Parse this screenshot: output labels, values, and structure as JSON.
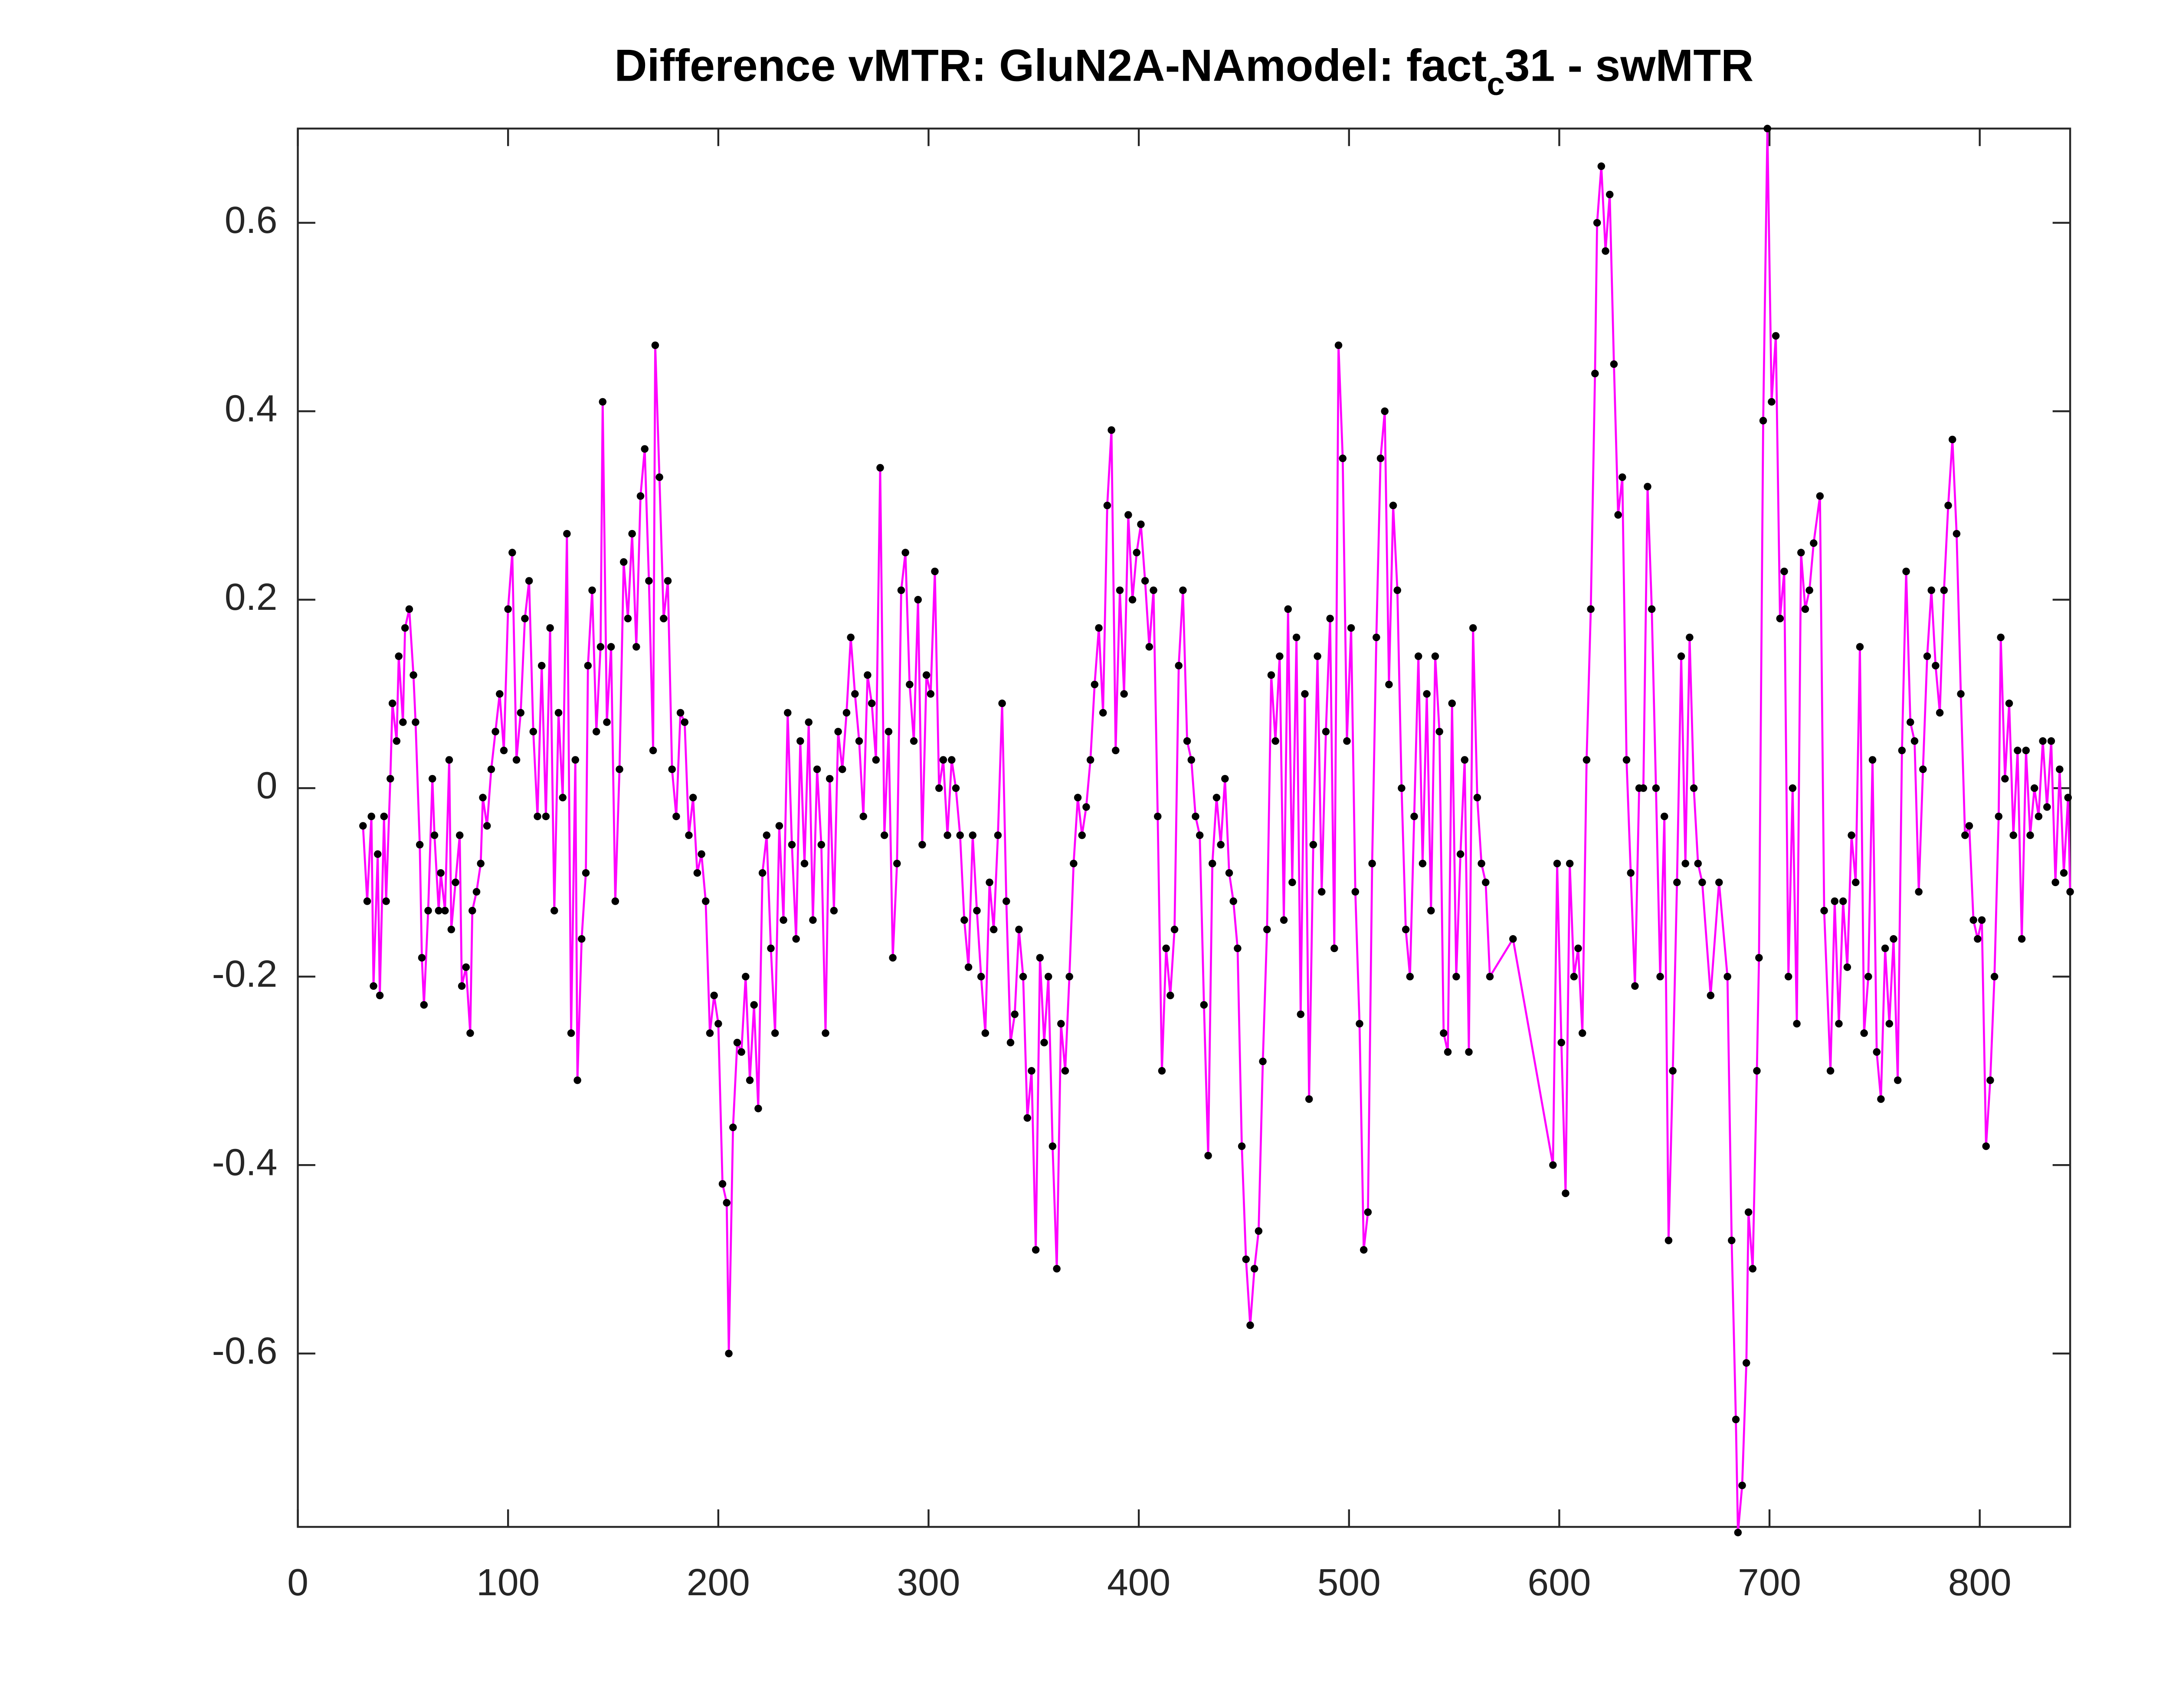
{
  "chart_data": {
    "type": "line",
    "title": [
      "Difference vMTR: GluN2A-NAmodel: fact",
      "c",
      "31 - swMTR"
    ],
    "line_color": "#ff00ff",
    "marker_color": "#000000",
    "xlim": [
      0,
      843
    ],
    "ylim": [
      -0.784,
      0.7
    ],
    "xticks": [
      0,
      100,
      200,
      300,
      400,
      500,
      600,
      700,
      800
    ],
    "yticks": [
      -0.6,
      -0.4,
      -0.2,
      0,
      0.2,
      0.4,
      0.6
    ],
    "x": [
      31,
      33,
      35,
      36,
      38,
      39,
      41,
      42,
      44,
      45,
      47,
      48,
      50,
      51,
      53,
      55,
      56,
      58,
      59,
      60,
      62,
      64,
      65,
      67,
      68,
      70,
      72,
      73,
      75,
      77,
      78,
      80,
      82,
      83,
      85,
      87,
      88,
      90,
      92,
      94,
      96,
      98,
      100,
      102,
      104,
      106,
      108,
      110,
      112,
      114,
      116,
      118,
      120,
      122,
      124,
      126,
      128,
      130,
      132,
      133,
      135,
      137,
      138,
      140,
      142,
      144,
      145,
      147,
      149,
      151,
      153,
      155,
      157,
      159,
      161,
      163,
      165,
      167,
      169,
      170,
      172,
      174,
      176,
      178,
      180,
      182,
      184,
      186,
      188,
      190,
      192,
      194,
      196,
      198,
      200,
      202,
      204,
      205,
      207,
      209,
      211,
      213,
      215,
      217,
      219,
      221,
      223,
      225,
      227,
      229,
      231,
      233,
      235,
      237,
      239,
      241,
      243,
      245,
      247,
      249,
      251,
      253,
      255,
      257,
      259,
      261,
      263,
      265,
      267,
      269,
      271,
      273,
      275,
      277,
      279,
      281,
      283,
      285,
      287,
      289,
      291,
      293,
      295,
      297,
      299,
      301,
      303,
      305,
      307,
      309,
      311,
      313,
      315,
      317,
      319,
      321,
      323,
      325,
      327,
      329,
      331,
      333,
      335,
      337,
      339,
      341,
      343,
      345,
      347,
      349,
      351,
      353,
      355,
      357,
      359,
      361,
      363,
      365,
      367,
      369,
      371,
      373,
      375,
      377,
      379,
      381,
      383,
      385,
      387,
      389,
      391,
      393,
      395,
      397,
      399,
      401,
      403,
      405,
      407,
      409,
      411,
      413,
      415,
      417,
      419,
      421,
      423,
      425,
      427,
      429,
      431,
      433,
      435,
      437,
      439,
      441,
      443,
      445,
      447,
      449,
      451,
      453,
      455,
      457,
      459,
      461,
      463,
      465,
      467,
      469,
      471,
      473,
      475,
      477,
      479,
      481,
      483,
      485,
      487,
      489,
      491,
      493,
      495,
      497,
      499,
      501,
      503,
      505,
      507,
      509,
      511,
      513,
      515,
      517,
      519,
      521,
      523,
      525,
      527,
      529,
      531,
      533,
      535,
      537,
      539,
      541,
      543,
      545,
      547,
      549,
      551,
      553,
      555,
      557,
      559,
      561,
      563,
      565,
      567,
      578,
      597,
      599,
      601,
      603,
      605,
      607,
      609,
      611,
      613,
      615,
      617,
      618,
      620,
      622,
      624,
      626,
      628,
      630,
      632,
      634,
      636,
      638,
      640,
      642,
      644,
      646,
      648,
      650,
      652,
      654,
      656,
      658,
      660,
      662,
      664,
      666,
      668,
      672,
      676,
      680,
      682,
      684,
      685,
      687,
      689,
      690,
      692,
      694,
      695,
      697,
      699,
      701,
      703,
      705,
      707,
      709,
      711,
      713,
      715,
      717,
      719,
      721,
      724,
      726,
      729,
      731,
      733,
      735,
      737,
      739,
      741,
      743,
      745,
      747,
      749,
      751,
      753,
      755,
      757,
      759,
      761,
      763,
      765,
      767,
      769,
      771,
      773,
      775,
      777,
      779,
      781,
      783,
      785,
      787,
      789,
      791,
      793,
      795,
      797,
      799,
      801,
      803,
      805,
      807,
      809,
      810,
      812,
      814,
      816,
      818,
      820,
      822,
      824,
      826,
      828,
      830,
      832,
      834,
      836,
      838,
      840,
      842,
      843
    ],
    "values": [
      -0.04,
      -0.12,
      -0.03,
      -0.21,
      -0.07,
      -0.22,
      -0.03,
      -0.12,
      0.01,
      0.09,
      0.05,
      0.14,
      0.07,
      0.17,
      0.19,
      0.12,
      0.07,
      -0.06,
      -0.18,
      -0.23,
      -0.13,
      0.01,
      -0.05,
      -0.13,
      -0.09,
      -0.13,
      0.03,
      -0.15,
      -0.1,
      -0.05,
      -0.21,
      -0.19,
      -0.26,
      -0.13,
      -0.11,
      -0.08,
      -0.01,
      -0.04,
      0.02,
      0.06,
      0.1,
      0.04,
      0.19,
      0.25,
      0.03,
      0.08,
      0.18,
      0.22,
      0.06,
      -0.03,
      0.13,
      -0.03,
      0.17,
      -0.13,
      0.08,
      -0.01,
      0.27,
      -0.26,
      0.03,
      -0.31,
      -0.16,
      -0.09,
      0.13,
      0.21,
      0.06,
      0.15,
      0.41,
      0.07,
      0.15,
      -0.12,
      0.02,
      0.24,
      0.18,
      0.27,
      0.15,
      0.31,
      0.36,
      0.22,
      0.04,
      0.47,
      0.33,
      0.18,
      0.22,
      0.02,
      -0.03,
      0.08,
      0.07,
      -0.05,
      -0.01,
      -0.09,
      -0.07,
      -0.12,
      -0.26,
      -0.22,
      -0.25,
      -0.42,
      -0.44,
      -0.6,
      -0.36,
      -0.27,
      -0.28,
      -0.2,
      -0.31,
      -0.23,
      -0.34,
      -0.09,
      -0.05,
      -0.17,
      -0.26,
      -0.04,
      -0.14,
      0.08,
      -0.06,
      -0.16,
      0.05,
      -0.08,
      0.07,
      -0.14,
      0.02,
      -0.06,
      -0.26,
      0.01,
      -0.13,
      0.06,
      0.02,
      0.08,
      0.16,
      0.1,
      0.05,
      -0.03,
      0.12,
      0.09,
      0.03,
      0.34,
      -0.05,
      0.06,
      -0.18,
      -0.08,
      0.21,
      0.25,
      0.11,
      0.05,
      0.2,
      -0.06,
      0.12,
      0.1,
      0.23,
      0.0,
      0.03,
      -0.05,
      0.03,
      0.0,
      -0.05,
      -0.14,
      -0.19,
      -0.05,
      -0.13,
      -0.2,
      -0.26,
      -0.1,
      -0.15,
      -0.05,
      0.09,
      -0.12,
      -0.27,
      -0.24,
      -0.15,
      -0.2,
      -0.35,
      -0.3,
      -0.49,
      -0.18,
      -0.27,
      -0.2,
      -0.38,
      -0.51,
      -0.25,
      -0.3,
      -0.2,
      -0.08,
      -0.01,
      -0.05,
      -0.02,
      0.03,
      0.11,
      0.17,
      0.08,
      0.3,
      0.38,
      0.04,
      0.21,
      0.1,
      0.29,
      0.2,
      0.25,
      0.28,
      0.22,
      0.15,
      0.21,
      -0.03,
      -0.3,
      -0.17,
      -0.22,
      -0.15,
      0.13,
      0.21,
      0.05,
      0.03,
      -0.03,
      -0.05,
      -0.23,
      -0.39,
      -0.08,
      -0.01,
      -0.06,
      0.01,
      -0.09,
      -0.12,
      -0.17,
      -0.38,
      -0.5,
      -0.57,
      -0.51,
      -0.47,
      -0.29,
      -0.15,
      0.12,
      0.05,
      0.14,
      -0.14,
      0.19,
      -0.1,
      0.16,
      -0.24,
      0.1,
      -0.33,
      -0.06,
      0.14,
      -0.11,
      0.06,
      0.18,
      -0.17,
      0.47,
      0.35,
      0.05,
      0.17,
      -0.11,
      -0.25,
      -0.49,
      -0.45,
      -0.08,
      0.16,
      0.35,
      0.4,
      0.11,
      0.3,
      0.21,
      0.0,
      -0.15,
      -0.2,
      -0.03,
      0.14,
      -0.08,
      0.1,
      -0.13,
      0.14,
      0.06,
      -0.26,
      -0.28,
      0.09,
      -0.2,
      -0.07,
      0.03,
      -0.28,
      0.17,
      -0.01,
      -0.08,
      -0.1,
      -0.2,
      -0.16,
      -0.4,
      -0.08,
      -0.27,
      -0.43,
      -0.08,
      -0.2,
      -0.17,
      -0.26,
      0.03,
      0.19,
      0.44,
      0.6,
      0.66,
      0.57,
      0.63,
      0.45,
      0.29,
      0.33,
      0.03,
      -0.09,
      -0.21,
      0.0,
      0.0,
      0.32,
      0.19,
      0.0,
      -0.2,
      -0.03,
      -0.48,
      -0.3,
      -0.1,
      0.14,
      -0.08,
      0.16,
      0.0,
      -0.08,
      -0.1,
      -0.22,
      -0.1,
      -0.2,
      -0.48,
      -0.67,
      -0.79,
      -0.74,
      -0.61,
      -0.45,
      -0.51,
      -0.3,
      -0.18,
      0.39,
      0.7,
      0.41,
      0.48,
      0.18,
      0.23,
      -0.2,
      0.0,
      -0.25,
      0.25,
      0.19,
      0.21,
      0.26,
      0.31,
      -0.13,
      -0.3,
      -0.12,
      -0.25,
      -0.12,
      -0.19,
      -0.05,
      -0.1,
      0.15,
      -0.26,
      -0.2,
      0.03,
      -0.28,
      -0.33,
      -0.17,
      -0.25,
      -0.16,
      -0.31,
      0.04,
      0.23,
      0.07,
      0.05,
      -0.11,
      0.02,
      0.14,
      0.21,
      0.13,
      0.08,
      0.21,
      0.3,
      0.37,
      0.27,
      0.1,
      -0.05,
      -0.04,
      -0.14,
      -0.16,
      -0.14,
      -0.38,
      -0.31,
      -0.2,
      -0.03,
      0.16,
      0.01,
      0.09,
      -0.05,
      0.04,
      -0.16,
      0.04,
      -0.05,
      0.0,
      -0.03,
      0.05,
      -0.02,
      0.05,
      -0.1,
      0.02,
      -0.09,
      -0.01,
      -0.11
    ]
  }
}
